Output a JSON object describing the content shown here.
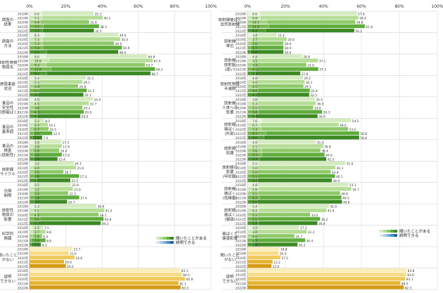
{
  "chart_data": [
    {
      "type": "bar",
      "panel": "left",
      "xlim": [
        0,
        100
      ],
      "ticks": [
        "0%",
        "20%",
        "40%",
        "60%",
        "80%",
        "100%"
      ],
      "years": [
        "2018年",
        "2019年",
        "2020年",
        "2021年",
        "2022年"
      ],
      "legend": [
        "聞いたことがある",
        "説明できる"
      ],
      "groups": [
        {
          "label": "調査の\n結果",
          "heard": [
            35.3,
            40.3,
            32.8,
            38.3,
            35.5
          ],
          "explain": [
            6.6,
            7.1,
            5.9,
            7.7,
            7.1
          ]
        },
        {
          "label": "調査の\n方法",
          "heard": [
            49.0,
            50.0,
            46.6,
            50.9,
            48.9
          ],
          "explain": [
            8.3,
            7.3,
            7.3,
            7.4,
            9.4
          ]
        },
        {
          "label": "放射性物質\n物質名",
          "heard": [
            64.8,
            67.9,
            63.7,
            69.2,
            66.7
          ],
          "explain": [
            9.0,
            10.8,
            9.3,
            11.9,
            9.4
          ]
        },
        {
          "label": "原発事故\n状況",
          "heard": [
            31.1,
            29.1,
            26.8,
            31.5,
            29.7
          ],
          "explain": [
            5.4,
            5.3,
            4.6,
            5.3,
            5.0
          ]
        },
        {
          "label": "食品の\n安全性\n(内部被ばく)",
          "heard": [
            34.9,
            32.7,
            29.2,
            29.9,
            28.0
          ],
          "explain": [
            4.0,
            4.5,
            3.6,
            4.3,
            4.4
          ]
        },
        {
          "label": "食品の\n基準値",
          "heard": [
            8.0,
            10.1,
            10.5,
            12.5,
            7.0
          ],
          "explain": [
            2.3,
            2.3,
            1.7,
            2.3,
            1.6
          ]
        },
        {
          "label": "食品の\n検査\n(放射性)",
          "heard": [
            17.5,
            17.8,
            16.4,
            17.8,
            15.4
          ],
          "explain": [
            2.8,
            2.8,
            1.8,
            2.6,
            2.4
          ]
        },
        {
          "label": "放射線\nサイクル",
          "heard": [
            24.3,
            25.6,
            18.7,
            27.3,
            22.5
          ],
          "explain": [
            3.2,
            2.0,
            2.5,
            2.8,
            4.1
          ]
        },
        {
          "label": "出荷\n制限",
          "heard": [
            22.8,
            23.9,
            21.3,
            27.4,
            20.7
          ],
          "explain": [
            2.5,
            3.2,
            2.4,
            2.8,
            2.7
          ]
        },
        {
          "label": "放射性\n物質の\n影響",
          "heard": [
            36.9,
            41.2,
            38.1,
            40.8,
            39.2
          ],
          "explain": [
            5.3,
            5.5,
            4.2,
            5.8,
            5.0
          ]
        },
        {
          "label": "科学的\n情報",
          "heard": [
            7.5,
            8.8,
            6.9,
            8.8,
            6.3
          ],
          "explain": [
            1.5,
            1.7,
            1.8,
            1.0,
            1.1
          ]
        },
        {
          "label": "聞いたこと\nがない",
          "heard": [
            23.7,
            21.6,
            24.8,
            19.0,
            20.0
          ],
          "explain": []
        },
        {
          "label": "説明\nできない",
          "heard": [
            83.1,
            84.0,
            85.8,
            82.1,
            83.3
          ],
          "explain": []
        }
      ]
    },
    {
      "type": "bar",
      "panel": "right",
      "xlim": [
        0,
        100
      ],
      "ticks": [
        "0%",
        "20%",
        "40%",
        "60%",
        "80%",
        "100%"
      ],
      "years": [
        "2018年",
        "2019年",
        "2020年",
        "2021年",
        "2022年"
      ],
      "legend": [
        "聞いたことがある",
        "説明できる"
      ],
      "groups": [
        {
          "label": "放射線被ばく\n自然放射線",
          "heard": [
            57.6,
            58.4,
            56.8,
            61.8,
            56.2
          ],
          "explain": [
            6.6,
            6.8,
            10.1,
            11.3,
            9.4
          ]
        },
        {
          "label": "放射線\n単位",
          "heard": [
            15.4,
            20.6,
            18.9,
            18.9,
            18.9
          ],
          "explain": [
            3.4,
            2.7,
            1.6,
            1.7,
            1.6
          ]
        },
        {
          "label": "放射線\n放射能\n(違い)",
          "heard": [
            28.8,
            37.1,
            31.0,
            37.3,
            27.8
          ],
          "explain": [
            4.8,
            3.1,
            3.3,
            4.5,
            4.2
          ]
        },
        {
          "label": "放射性物質\n半減期",
          "heard": [
            29.2,
            30.1,
            29.5,
            32.8,
            32.5
          ],
          "explain": [
            4.8,
            4.6,
            4.5,
            5.4,
            4.7
          ]
        },
        {
          "label": "放射線\n人体への\n影響",
          "heard": [
            35.5,
            36.0,
            34.6,
            39.3,
            36.9
          ],
          "explain": [
            3.6,
            5.3,
            5.1,
            5.8,
            4.4
          ]
        },
        {
          "label": "放射線\n被ばく\n(外部)",
          "heard": [
            54.5,
            48.0,
            53.0,
            58.8,
            58.8
          ],
          "explain": [
            7.6,
            6.7,
            7.4,
            9.7,
            8.6
          ]
        },
        {
          "label": "放射線\n防護",
          "heard": [
            35.9,
            39.8,
            38.4,
            40.6,
            41.5
          ],
          "explain": [
            4.6,
            5.1,
            7.6,
            7.7,
            6.4
          ]
        },
        {
          "label": "放射線の\n影響\n(甲状腺)",
          "heard": [
            51.6,
            46.3,
            43.8,
            46.1,
            44.4
          ],
          "explain": [
            5.5,
            5.0,
            5.0,
            5.3,
            5.3
          ]
        },
        {
          "label": "放射線\n被ばく\n(低線量)",
          "heard": [
            53.1,
            54.7,
            48.8,
            49.5,
            49.8
          ],
          "explain": [
            4.8,
            5.8,
            5.5,
            6.3,
            5.2
          ]
        },
        {
          "label": "放射線\n被ばく\n(健康)",
          "heard": [
            42.9,
            41.6,
            33.0,
            38.2,
            36.8
          ],
          "explain": [
            5.4,
            6.1,
            5.2,
            5.2,
            5.9
          ]
        },
        {
          "label": "被ばくと\n健康影響",
          "heard": [
            27.2,
            31.2,
            24.7,
            30.4,
            26.3
          ],
          "explain": [
            3.2,
            3.2,
            4.6,
            3.7,
            3.4
          ]
        },
        {
          "label": "聞いたこと\nがない",
          "heard": [
            16.8,
            16.3,
            17.3,
            13.2,
            12.6
          ],
          "explain": []
        },
        {
          "label": "説明\nできない",
          "heard": [
            83.8,
            83.6,
            83.1,
            80.5,
            82.3
          ],
          "explain": []
        }
      ]
    }
  ]
}
